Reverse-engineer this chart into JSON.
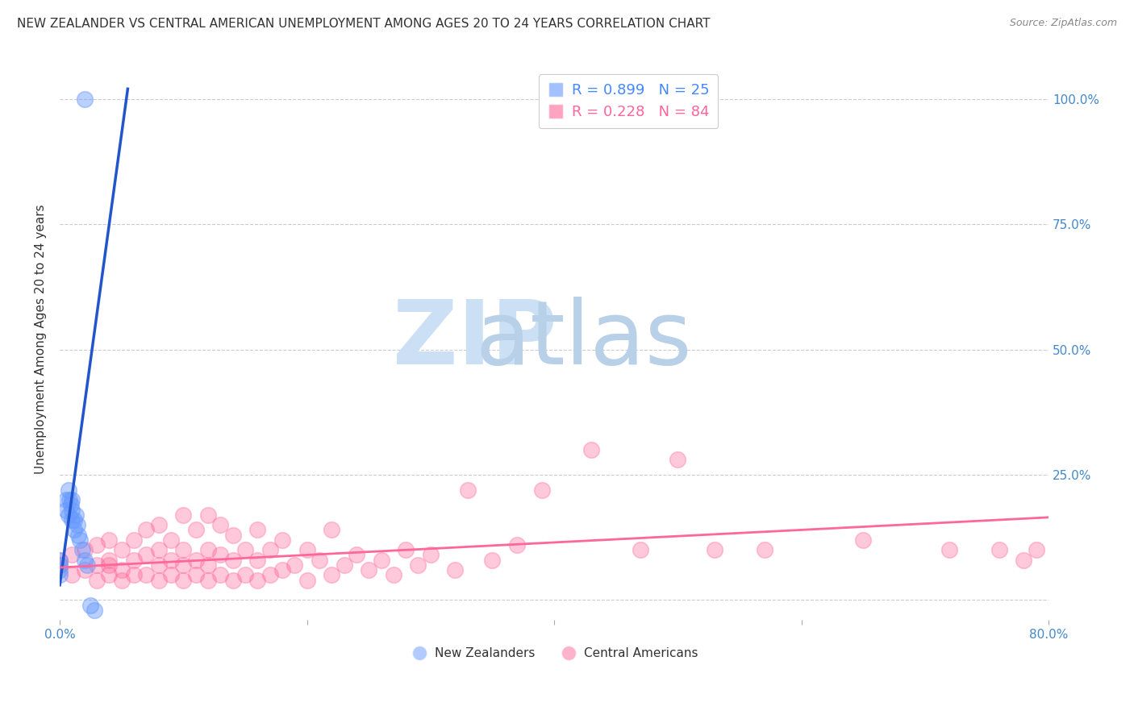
{
  "title": "NEW ZEALANDER VS CENTRAL AMERICAN UNEMPLOYMENT AMONG AGES 20 TO 24 YEARS CORRELATION CHART",
  "source": "Source: ZipAtlas.com",
  "xlabel": "",
  "ylabel": "Unemployment Among Ages 20 to 24 years",
  "xlim": [
    0.0,
    0.8
  ],
  "ylim": [
    -0.04,
    1.08
  ],
  "x_ticks": [
    0.0,
    0.2,
    0.4,
    0.6,
    0.8
  ],
  "x_tick_labels": [
    "0.0%",
    "",
    "",
    "",
    "80.0%"
  ],
  "y_tick_labels": [
    "",
    "25.0%",
    "50.0%",
    "75.0%",
    "100.0%"
  ],
  "y_ticks": [
    0.0,
    0.25,
    0.5,
    0.75,
    1.0
  ],
  "nz_color": "#6699FF",
  "ca_color": "#FF6699",
  "nz_line_color": "#2255CC",
  "ca_line_color": "#FF6699",
  "nz_R": 0.899,
  "nz_N": 25,
  "ca_R": 0.228,
  "ca_N": 84,
  "legend_label_nz": "New Zealanders",
  "legend_label_ca": "Central Americans",
  "nz_scatter_x": [
    0.0,
    0.0,
    0.0,
    0.0,
    0.005,
    0.005,
    0.007,
    0.007,
    0.008,
    0.009,
    0.01,
    0.01,
    0.01,
    0.012,
    0.012,
    0.013,
    0.014,
    0.015,
    0.016,
    0.018,
    0.02,
    0.022,
    0.025,
    0.028,
    0.02
  ],
  "nz_scatter_y": [
    0.05,
    0.06,
    0.07,
    0.08,
    0.18,
    0.2,
    0.17,
    0.22,
    0.2,
    0.19,
    0.16,
    0.18,
    0.2,
    0.14,
    0.16,
    0.17,
    0.15,
    0.13,
    0.12,
    0.1,
    0.08,
    0.07,
    -0.01,
    -0.02,
    1.0
  ],
  "ca_scatter_x": [
    0.0,
    0.0,
    0.01,
    0.01,
    0.02,
    0.02,
    0.03,
    0.03,
    0.03,
    0.04,
    0.04,
    0.04,
    0.04,
    0.05,
    0.05,
    0.05,
    0.06,
    0.06,
    0.06,
    0.07,
    0.07,
    0.07,
    0.08,
    0.08,
    0.08,
    0.08,
    0.09,
    0.09,
    0.09,
    0.1,
    0.1,
    0.1,
    0.1,
    0.11,
    0.11,
    0.11,
    0.12,
    0.12,
    0.12,
    0.12,
    0.13,
    0.13,
    0.13,
    0.14,
    0.14,
    0.14,
    0.15,
    0.15,
    0.16,
    0.16,
    0.16,
    0.17,
    0.17,
    0.18,
    0.18,
    0.19,
    0.2,
    0.2,
    0.21,
    0.22,
    0.22,
    0.23,
    0.24,
    0.25,
    0.26,
    0.27,
    0.28,
    0.29,
    0.3,
    0.32,
    0.33,
    0.35,
    0.37,
    0.39,
    0.43,
    0.47,
    0.5,
    0.53,
    0.57,
    0.65,
    0.72,
    0.76,
    0.78,
    0.79
  ],
  "ca_scatter_y": [
    0.07,
    0.08,
    0.05,
    0.09,
    0.06,
    0.1,
    0.04,
    0.07,
    0.11,
    0.05,
    0.07,
    0.08,
    0.12,
    0.04,
    0.06,
    0.1,
    0.05,
    0.08,
    0.12,
    0.05,
    0.09,
    0.14,
    0.04,
    0.07,
    0.1,
    0.15,
    0.05,
    0.08,
    0.12,
    0.04,
    0.07,
    0.1,
    0.17,
    0.05,
    0.08,
    0.14,
    0.04,
    0.07,
    0.1,
    0.17,
    0.05,
    0.09,
    0.15,
    0.04,
    0.08,
    0.13,
    0.05,
    0.1,
    0.04,
    0.08,
    0.14,
    0.05,
    0.1,
    0.06,
    0.12,
    0.07,
    0.04,
    0.1,
    0.08,
    0.05,
    0.14,
    0.07,
    0.09,
    0.06,
    0.08,
    0.05,
    0.1,
    0.07,
    0.09,
    0.06,
    0.22,
    0.08,
    0.11,
    0.22,
    0.3,
    0.1,
    0.28,
    0.1,
    0.1,
    0.12,
    0.1,
    0.1,
    0.08,
    0.1
  ],
  "nz_line_x0": 0.0,
  "nz_line_x1": 0.055,
  "nz_line_y0": 0.03,
  "nz_line_y1": 1.02,
  "ca_line_x0": 0.0,
  "ca_line_x1": 0.8,
  "ca_line_y0": 0.065,
  "ca_line_y1": 0.165
}
